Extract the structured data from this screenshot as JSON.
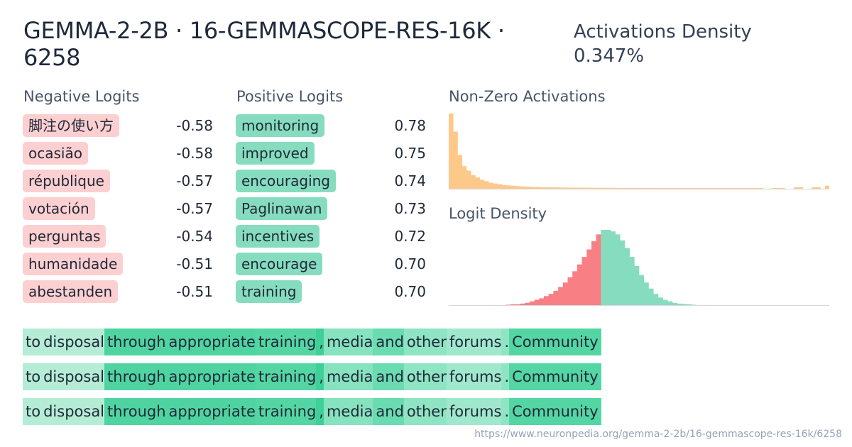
{
  "header": {
    "title": "GEMMA-2-2B · 16-GEMMASCOPE-RES-16K · 6258",
    "density_label": "Activations Density",
    "density_value": "0.347%"
  },
  "negative_logits": {
    "heading": "Negative Logits",
    "items": [
      {
        "token": "脚注の使い方",
        "value": "-0.58"
      },
      {
        "token": " ocasião",
        "value": "-0.58"
      },
      {
        "token": " république",
        "value": "-0.57"
      },
      {
        "token": " votación",
        "value": "-0.57"
      },
      {
        "token": " perguntas",
        "value": "-0.54"
      },
      {
        "token": " humanidade",
        "value": "-0.51"
      },
      {
        "token": "abestanden",
        "value": "-0.51"
      }
    ]
  },
  "positive_logits": {
    "heading": "Positive Logits",
    "items": [
      {
        "token": " monitoring",
        "value": "0.78"
      },
      {
        "token": " improved",
        "value": "0.75"
      },
      {
        "token": " encouraging",
        "value": "0.74"
      },
      {
        "token": " Paglinawan",
        "value": "0.73"
      },
      {
        "token": " incentives",
        "value": "0.72"
      },
      {
        "token": " encourage",
        "value": "0.70"
      },
      {
        "token": " training",
        "value": "0.70"
      }
    ]
  },
  "activations_chart": {
    "heading": "Non-Zero Activations",
    "color": "#fdc98a",
    "values": [
      1.0,
      0.76,
      0.45,
      0.3,
      0.24,
      0.18,
      0.15,
      0.12,
      0.1,
      0.08,
      0.07,
      0.06,
      0.05,
      0.045,
      0.04,
      0.035,
      0.03,
      0.028,
      0.026,
      0.024,
      0.022,
      0.02,
      0.02,
      0.018,
      0.018,
      0.016,
      0.016,
      0.015,
      0.015,
      0.014,
      0.014,
      0.014,
      0.013,
      0.013,
      0.012,
      0.012,
      0.012,
      0.012,
      0.011,
      0.011,
      0.011,
      0.011,
      0.011,
      0.011,
      0.011,
      0.011,
      0.01,
      0.01,
      0.01,
      0.01,
      0.01,
      0.01,
      0.01,
      0.01,
      0.01,
      0.01,
      0.01,
      0.01,
      0.01,
      0.01,
      0.01,
      0.01,
      0.01,
      0.01,
      0.01,
      0.01,
      0.01,
      0.01,
      0.01,
      0.01,
      0.01,
      0.0,
      0.0,
      0.01,
      0.01,
      0.01,
      0.0,
      0.0,
      0.02,
      0.02,
      0.0,
      0.0,
      0.02,
      0.02,
      0.0,
      0.04
    ]
  },
  "logit_density_chart": {
    "heading": "Logit Density",
    "negative_color": "#f87f84",
    "positive_color": "#86dcbe",
    "split_index": 32,
    "values": [
      0,
      0,
      0,
      0,
      0,
      0,
      0,
      0,
      0,
      0,
      0,
      0,
      0.005,
      0.01,
      0.01,
      0.02,
      0.03,
      0.05,
      0.07,
      0.09,
      0.12,
      0.15,
      0.19,
      0.24,
      0.3,
      0.37,
      0.45,
      0.54,
      0.64,
      0.74,
      0.85,
      0.94,
      1.0,
      1.0,
      0.98,
      0.94,
      0.86,
      0.76,
      0.64,
      0.52,
      0.4,
      0.3,
      0.22,
      0.15,
      0.1,
      0.07,
      0.05,
      0.03,
      0.02,
      0.015,
      0.01,
      0.005,
      0,
      0,
      0,
      0,
      0,
      0,
      0,
      0,
      0,
      0,
      0,
      0,
      0,
      0,
      0,
      0,
      0,
      0,
      0,
      0,
      0,
      0,
      0,
      0,
      0,
      0,
      0,
      0
    ]
  },
  "context_rows": [
    {
      "tokens": [
        {
          "text": "to",
          "color": "#b5ecd6"
        },
        {
          "text": " disposal",
          "color": "#b5ecd6"
        },
        {
          "text": " through",
          "color": "#4fd4a1"
        },
        {
          "text": " appropriate",
          "color": "#4fd4a1"
        },
        {
          "text": " training",
          "color": "#54d6a4"
        },
        {
          "text": ",",
          "color": "#3fcf98"
        },
        {
          "text": " media",
          "color": "#86e2bf"
        },
        {
          "text": " and",
          "color": "#6bdbb1"
        },
        {
          "text": " other",
          "color": "#8fe4c4"
        },
        {
          "text": " forums",
          "color": "#a0e8cd"
        },
        {
          "text": ".",
          "color": "#8fe4c4"
        },
        {
          "text": " Community",
          "color": "#54d6a4"
        }
      ]
    },
    {
      "tokens": [
        {
          "text": "to",
          "color": "#b5ecd6"
        },
        {
          "text": " disposal",
          "color": "#b5ecd6"
        },
        {
          "text": " through",
          "color": "#4fd4a1"
        },
        {
          "text": " appropriate",
          "color": "#4fd4a1"
        },
        {
          "text": " training",
          "color": "#54d6a4"
        },
        {
          "text": ",",
          "color": "#3fcf98"
        },
        {
          "text": " media",
          "color": "#86e2bf"
        },
        {
          "text": " and",
          "color": "#6bdbb1"
        },
        {
          "text": " other",
          "color": "#8fe4c4"
        },
        {
          "text": " forums",
          "color": "#a0e8cd"
        },
        {
          "text": ".",
          "color": "#8fe4c4"
        },
        {
          "text": " Community",
          "color": "#54d6a4"
        }
      ]
    },
    {
      "tokens": [
        {
          "text": "to",
          "color": "#b5ecd6"
        },
        {
          "text": " disposal",
          "color": "#b5ecd6"
        },
        {
          "text": " through",
          "color": "#4fd4a1"
        },
        {
          "text": " appropriate",
          "color": "#4fd4a1"
        },
        {
          "text": " training",
          "color": "#54d6a4"
        },
        {
          "text": ",",
          "color": "#3fcf98"
        },
        {
          "text": " media",
          "color": "#86e2bf"
        },
        {
          "text": " and",
          "color": "#6bdbb1"
        },
        {
          "text": " other",
          "color": "#8fe4c4"
        },
        {
          "text": " forums",
          "color": "#a0e8cd"
        },
        {
          "text": ".",
          "color": "#8fe4c4"
        },
        {
          "text": " Community",
          "color": "#54d6a4"
        }
      ]
    }
  ],
  "footer": {
    "url": "https://www.neuronpedia.org/gemma-2-2b/16-gemmascope-res-16k/6258"
  }
}
